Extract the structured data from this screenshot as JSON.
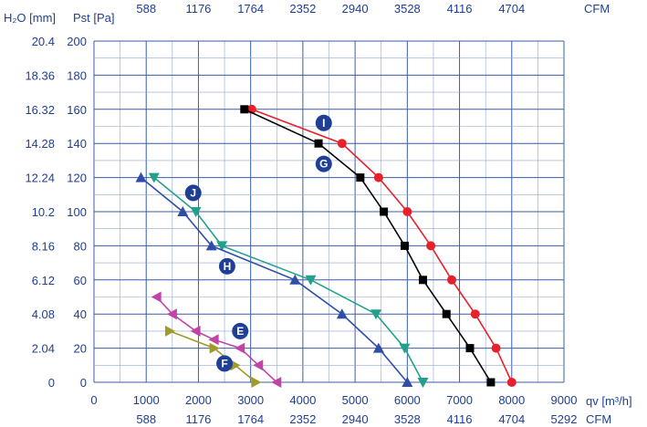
{
  "chart_data": {
    "type": "line",
    "x_label": "qv [m³/h]",
    "y_label_h2o": "H₂O [mm]",
    "y_label_pa": "Pst [Pa]",
    "cfm_label": "CFM",
    "xlim": [
      0,
      9000
    ],
    "ylim": [
      0,
      200
    ],
    "x_ticks": [
      0,
      1000,
      2000,
      3000,
      4000,
      5000,
      6000,
      7000,
      8000,
      9000
    ],
    "y_ticks": [
      0,
      20,
      40,
      60,
      80,
      100,
      120,
      140,
      160,
      180,
      200
    ],
    "h2o_ticks": [
      "0",
      "2.04",
      "4.08",
      "6.12",
      "8.16",
      "10.2",
      "12.24",
      "14.28",
      "16.32",
      "18.36",
      "20.4"
    ],
    "cfm_top": [
      "588",
      "1176",
      "1764",
      "2352",
      "2940",
      "3528",
      "4116",
      "4704"
    ],
    "cfm_bottom": [
      "588",
      "1176",
      "1764",
      "2352",
      "2940",
      "3528",
      "4116",
      "4704",
      "5292"
    ],
    "grid": true,
    "series": [
      {
        "name": "I",
        "color": "#e8202a",
        "marker": "circle",
        "x": [
          3020,
          4750,
          5450,
          6000,
          6450,
          6850,
          7300,
          7700,
          8000
        ],
        "y": [
          160,
          140,
          120,
          100,
          80,
          60,
          40,
          20,
          0
        ]
      },
      {
        "name": "G",
        "color": "#000000",
        "marker": "square",
        "x": [
          2880,
          4300,
          5100,
          5550,
          5950,
          6300,
          6750,
          7200,
          7600
        ],
        "y": [
          160,
          140,
          120,
          100,
          80,
          60,
          40,
          20,
          0
        ]
      },
      {
        "name": "J",
        "color": "#21a08b",
        "marker": "triangle-down",
        "x": [
          1150,
          1950,
          2450,
          4150,
          5400,
          5950,
          6300
        ],
        "y": [
          120,
          100,
          80,
          60,
          40,
          20,
          0
        ]
      },
      {
        "name": "H",
        "color": "#2f4ea8",
        "marker": "triangle-up",
        "x": [
          900,
          1700,
          2250,
          3850,
          4750,
          5450,
          6000
        ],
        "y": [
          120,
          100,
          80,
          60,
          40,
          20,
          0
        ]
      },
      {
        "name": "E",
        "color": "#c044a8",
        "marker": "triangle-left",
        "x": [
          1200,
          1500,
          1950,
          2300,
          2800,
          3150,
          3500
        ],
        "y": [
          50,
          40,
          30,
          25,
          20,
          10,
          0
        ]
      },
      {
        "name": "F",
        "color": "#a09a28",
        "marker": "triangle-right",
        "x": [
          1450,
          2300,
          2700,
          3100
        ],
        "y": [
          30,
          20,
          10,
          0
        ]
      }
    ],
    "labels": [
      {
        "text": "I",
        "x": 4400,
        "y": 152
      },
      {
        "text": "G",
        "x": 4400,
        "y": 128
      },
      {
        "text": "J",
        "x": 1900,
        "y": 111
      },
      {
        "text": "H",
        "x": 2550,
        "y": 68
      },
      {
        "text": "E",
        "x": 2800,
        "y": 30
      },
      {
        "text": "F",
        "x": 2500,
        "y": 11
      }
    ]
  }
}
